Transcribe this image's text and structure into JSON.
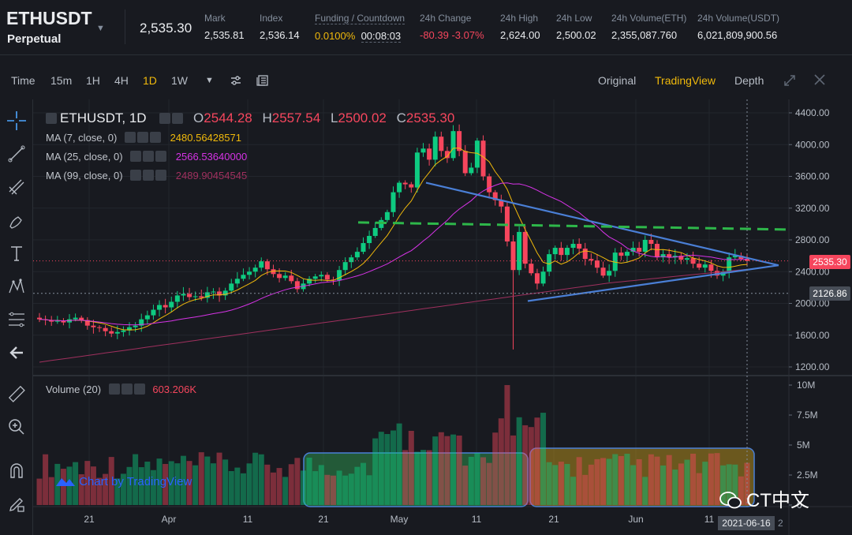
{
  "header": {
    "symbol": "ETHUSDT",
    "contract_type": "Perpetual",
    "last_price": "2,535.30",
    "stats": [
      {
        "label": "Mark",
        "value": "2,535.81"
      },
      {
        "label": "Index",
        "value": "2,536.14"
      },
      {
        "label": "Funding / Countdown",
        "value": "0.0100%",
        "value2": "00:08:03"
      },
      {
        "label": "24h Change",
        "value": "-80.39 -3.07%"
      },
      {
        "label": "24h High",
        "value": "2,624.00"
      },
      {
        "label": "24h Low",
        "value": "2,500.02"
      },
      {
        "label": "24h Volume(ETH)",
        "value": "2,355,087.760"
      },
      {
        "label": "24h Volume(USDT)",
        "value": "6,021,809,900.56"
      }
    ]
  },
  "toolbar": {
    "intervals": [
      "Time",
      "15m",
      "1H",
      "4H",
      "1D",
      "1W"
    ],
    "active_interval": "1D",
    "views": [
      "Original",
      "TradingView",
      "Depth"
    ],
    "active_view": "TradingView"
  },
  "legend": {
    "title": "ETHUSDT, 1D",
    "o_label": "O",
    "o": "2544.28",
    "h_label": "H",
    "h": "2557.54",
    "l_label": "L",
    "l": "2500.02",
    "c_label": "C",
    "c": "2535.30",
    "ma7_label": "MA (7, close, 0)",
    "ma7_value": "2480.56428571",
    "ma25_label": "MA (25, close, 0)",
    "ma25_value": "2566.53640000",
    "ma99_label": "MA (99, close, 0)",
    "ma99_value": "2489.90454545",
    "volume_label": "Volume (20)",
    "volume_value": "603.206K"
  },
  "price_axis": [
    "4400.00",
    "4000.00",
    "3600.00",
    "3200.00",
    "2800.00",
    "2400.00",
    "2000.00",
    "1600.00",
    "1200.00"
  ],
  "volume_axis": [
    "10M",
    "7.5M",
    "5M",
    "2.5M",
    "0"
  ],
  "current_price_tag": "2535.30",
  "crosshair_price_tag": "2126.86",
  "time_axis": [
    "21",
    "Apr",
    "11",
    "21",
    "May",
    "11",
    "21",
    "Jun",
    "11"
  ],
  "time_cursor": "2021-06-16",
  "time_axis_clipped": "2",
  "branding": {
    "chart_by": "Chart by TradingView",
    "watermark": "CT中文"
  },
  "colors": {
    "up": "#0ecb81",
    "down": "#f6465d",
    "ma7": "#f0b90b",
    "ma25": "#d633e6",
    "ma99": "#a0305e",
    "trendline": "#4a7fd6",
    "resistance": "#2eb74a",
    "accent": "#f0b90b",
    "background": "#181a20"
  },
  "chart_data": {
    "type": "candlestick",
    "title": "ETHUSDT, 1D",
    "ylim": [
      1200,
      4400
    ],
    "x_labels": [
      "21",
      "Apr",
      "11",
      "21",
      "May",
      "11",
      "21",
      "Jun",
      "11"
    ],
    "closes": [
      1800,
      1790,
      1770,
      1780,
      1760,
      1800,
      1820,
      1790,
      1720,
      1700,
      1690,
      1650,
      1620,
      1640,
      1660,
      1700,
      1720,
      1800,
      1850,
      1920,
      1980,
      1950,
      2020,
      2100,
      2120,
      2080,
      2090,
      2070,
      2140,
      2150,
      2100,
      2160,
      2250,
      2310,
      2360,
      2400,
      2450,
      2530,
      2430,
      2370,
      2320,
      2350,
      2280,
      2180,
      2250,
      2310,
      2340,
      2360,
      2300,
      2290,
      2420,
      2520,
      2580,
      2650,
      2760,
      2850,
      2950,
      3050,
      3150,
      3400,
      3520,
      3500,
      3460,
      3900,
      3950,
      3810,
      4100,
      3920,
      3830,
      4170,
      3920,
      3640,
      3710,
      4050,
      3600,
      3400,
      3300,
      3220,
      2780,
      2420,
      2900,
      2500,
      2380,
      2250,
      2400,
      2620,
      2700,
      2610,
      2700,
      2750,
      2690,
      2560,
      2540,
      2450,
      2350,
      2410,
      2640,
      2600,
      2650,
      2700,
      2650,
      2800,
      2750,
      2580,
      2620,
      2580,
      2600,
      2550,
      2570,
      2500,
      2450,
      2490,
      2410,
      2350,
      2400,
      2580,
      2600,
      2560,
      2535
    ],
    "volume_unit": "M",
    "volume_ylim": [
      0,
      10
    ],
    "series": [
      {
        "name": "MA (7, close, 0)",
        "last": 2480.56428571
      },
      {
        "name": "MA (25, close, 0)",
        "last": 2566.5364
      },
      {
        "name": "MA (99, close, 0)",
        "last": 2489.90454545
      }
    ]
  }
}
